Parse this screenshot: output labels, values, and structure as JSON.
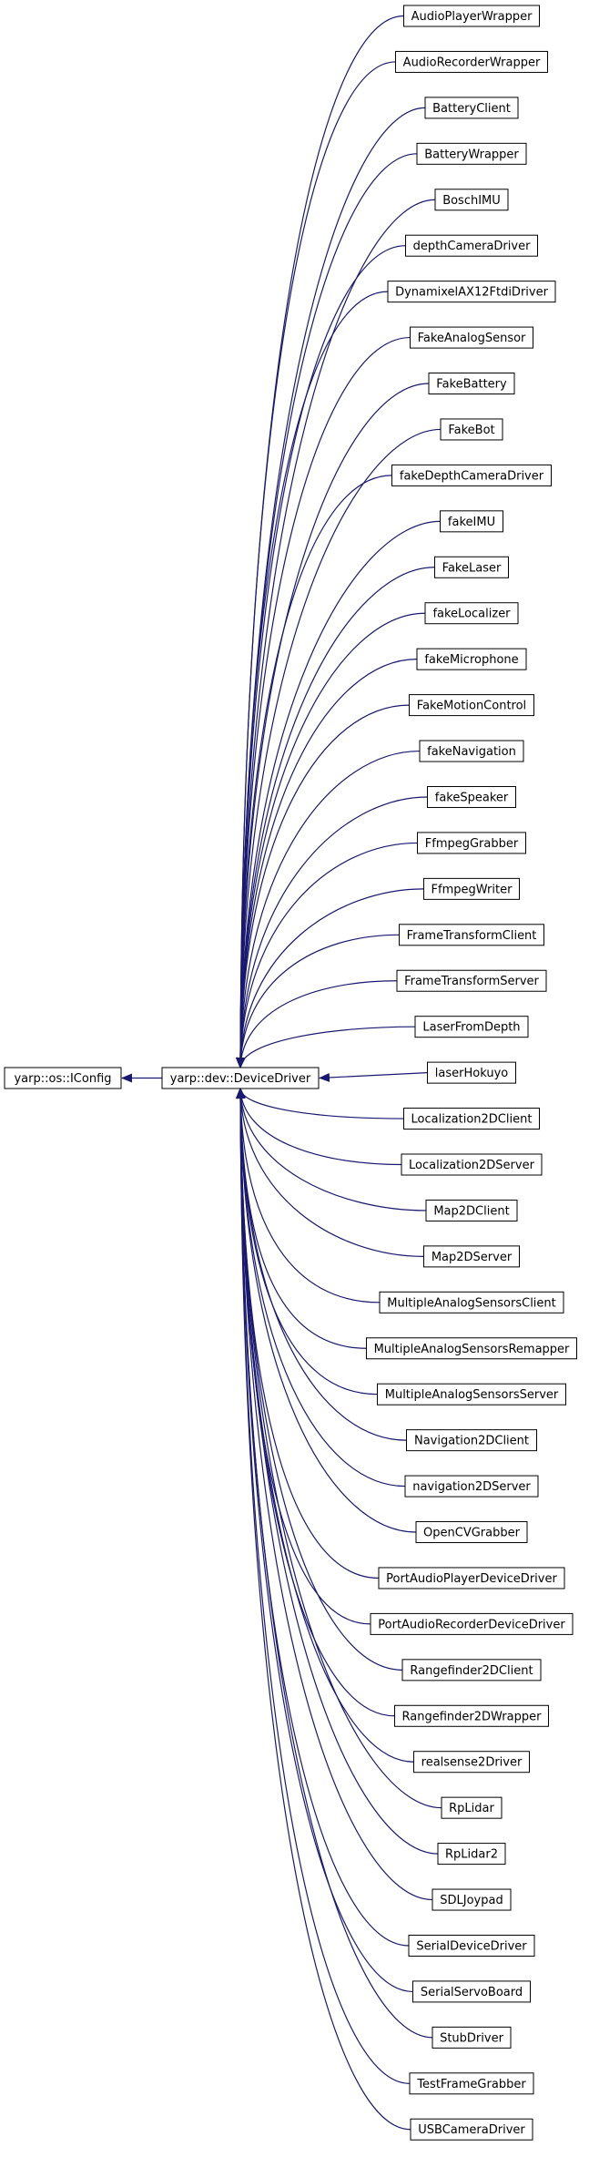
{
  "root": {
    "label": "yarp::os::IConfig",
    "fill": "#bfbfbf",
    "border": "#000000"
  },
  "base": {
    "label": "yarp::dev::DeviceDriver",
    "border": "#ff0000"
  },
  "edge_color": "#191970",
  "children": [
    {
      "label": "AudioPlayerWrapper"
    },
    {
      "label": "AudioRecorderWrapper"
    },
    {
      "label": "BatteryClient"
    },
    {
      "label": "BatteryWrapper"
    },
    {
      "label": "BoschIMU"
    },
    {
      "label": "depthCameraDriver"
    },
    {
      "label": "DynamixelAX12FtdiDriver"
    },
    {
      "label": "FakeAnalogSensor"
    },
    {
      "label": "FakeBattery"
    },
    {
      "label": "FakeBot"
    },
    {
      "label": "fakeDepthCameraDriver"
    },
    {
      "label": "fakeIMU"
    },
    {
      "label": "FakeLaser"
    },
    {
      "label": "fakeLocalizer"
    },
    {
      "label": "fakeMicrophone"
    },
    {
      "label": "FakeMotionControl"
    },
    {
      "label": "fakeNavigation"
    },
    {
      "label": "fakeSpeaker"
    },
    {
      "label": "FfmpegGrabber"
    },
    {
      "label": "FfmpegWriter"
    },
    {
      "label": "FrameTransformClient"
    },
    {
      "label": "FrameTransformServer"
    },
    {
      "label": "LaserFromDepth"
    },
    {
      "label": "laserHokuyo"
    },
    {
      "label": "Localization2DClient"
    },
    {
      "label": "Localization2DServer"
    },
    {
      "label": "Map2DClient"
    },
    {
      "label": "Map2DServer"
    },
    {
      "label": "MultipleAnalogSensorsClient"
    },
    {
      "label": "MultipleAnalogSensorsRemapper"
    },
    {
      "label": "MultipleAnalogSensorsServer"
    },
    {
      "label": "Navigation2DClient"
    },
    {
      "label": "navigation2DServer"
    },
    {
      "label": "OpenCVGrabber"
    },
    {
      "label": "PortAudioPlayerDeviceDriver"
    },
    {
      "label": "PortAudioRecorderDeviceDriver"
    },
    {
      "label": "Rangefinder2DClient"
    },
    {
      "label": "Rangefinder2DWrapper"
    },
    {
      "label": "realsense2Driver"
    },
    {
      "label": "RpLidar"
    },
    {
      "label": "RpLidar2"
    },
    {
      "label": "SDLJoypad"
    },
    {
      "label": "SerialDeviceDriver"
    },
    {
      "label": "SerialServoBoard"
    },
    {
      "label": "StubDriver"
    },
    {
      "label": "TestFrameGrabber"
    },
    {
      "label": "USBCameraDriver",
      "border": "#ff0000"
    }
  ]
}
